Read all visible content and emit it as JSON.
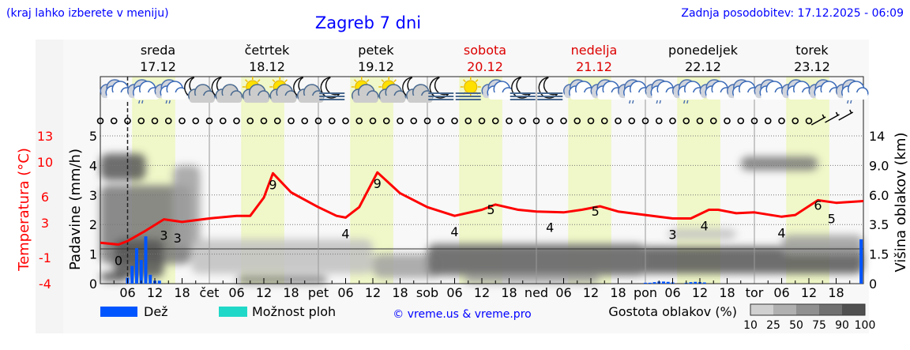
{
  "header": {
    "menu_hint": "(kraj lahko izberete v meniju)",
    "title": "Zagreb 7 dni",
    "updated": "Zadnja posodobitev: 17.12.2025 - 06:09"
  },
  "colors": {
    "title": "#0000ff",
    "temperature": "#ff0000",
    "weekend": "#dd0000",
    "rain": "#0055ff",
    "shower_chance": "#20d8c8",
    "daylight": "#f0f7c8"
  },
  "days": [
    {
      "name": "sreda",
      "date": "17.12",
      "weekend": false,
      "short": ""
    },
    {
      "name": "četrtek",
      "date": "18.12",
      "weekend": false,
      "short": "čet"
    },
    {
      "name": "petek",
      "date": "19.12",
      "weekend": false,
      "short": "pet"
    },
    {
      "name": "sobota",
      "date": "20.12",
      "weekend": true,
      "short": "sob"
    },
    {
      "name": "nedelja",
      "date": "21.12",
      "weekend": true,
      "short": "ned"
    },
    {
      "name": "ponedeljek",
      "date": "22.12",
      "weekend": false,
      "short": "pon"
    },
    {
      "name": "torek",
      "date": "23.12",
      "weekend": false,
      "short": "tor"
    }
  ],
  "hour_ticks": [
    "06",
    "12",
    "18"
  ],
  "weather_icons": [
    "cloudy",
    "cloud-drizzle",
    "cloud-drizzle",
    "moon-cloud",
    "moon-cloud",
    "sun-cloud",
    "sun-cloud",
    "moon-cloud",
    "moon-fog",
    "sun-cloud",
    "sun-cloud",
    "moon-cloud",
    "moon-fog",
    "sun-fog",
    "cloudy",
    "moon-fog",
    "moon-fog",
    "cloudy",
    "cloudy",
    "cloud-drizzle",
    "cloud-drizzle",
    "cloud-drizzle",
    "cloudy",
    "cloudy",
    "cloudy",
    "cloudy",
    "cloudy",
    "cloud-drizzle"
  ],
  "wind": {
    "calm_count": 53,
    "barbs": [
      "light-wind",
      "light-wind",
      "light-wind"
    ]
  },
  "chart_data": {
    "type": "line",
    "current_time_hour": 6,
    "x_unit": "hours from 17.12 00:00",
    "xlim": [
      0,
      168
    ],
    "daylight_hours": [
      7,
      16.5
    ],
    "left_axis": {
      "label": "Padavine (mm/h)",
      "ylim": [
        0,
        5
      ],
      "ticks": [
        "0",
        "1",
        "2",
        "3",
        "4",
        "5"
      ]
    },
    "temp_axis": {
      "label": "Temperatura (°C)",
      "ylim": [
        -4,
        13
      ],
      "ticks": [
        "-4",
        "-1",
        "3",
        "6",
        "10",
        "13"
      ]
    },
    "right_axis": {
      "label": "Višina oblakov (km)",
      "ticks": [
        "0",
        "1.5",
        "3.5",
        "6.0",
        "9.0",
        "14"
      ]
    },
    "temperature": {
      "hours": [
        0,
        4,
        6,
        10,
        14,
        18,
        24,
        30,
        33,
        36,
        38,
        42,
        48,
        52,
        54,
        57,
        61,
        66,
        72,
        78,
        84,
        87,
        92,
        96,
        102,
        106,
        110,
        114,
        120,
        126,
        130,
        134,
        136,
        140,
        144,
        150,
        153,
        158,
        162,
        168
      ],
      "values": [
        0.7,
        0.5,
        0.9,
        2.1,
        3.4,
        3.1,
        3.5,
        3.8,
        3.8,
        5.9,
        8.7,
        6.5,
        4.8,
        3.8,
        3.6,
        4.8,
        8.8,
        6.4,
        4.8,
        3.8,
        4.5,
        5.1,
        4.5,
        4.3,
        4.2,
        4.5,
        4.9,
        4.3,
        3.9,
        3.5,
        3.5,
        4.5,
        4.5,
        4.1,
        4.2,
        3.7,
        3.9,
        5.6,
        5.3,
        5.5
      ]
    },
    "temp_labels": [
      {
        "hour": 4,
        "text": "0"
      },
      {
        "hour": 14,
        "text": "3"
      },
      {
        "hour": 17,
        "text": "3"
      },
      {
        "hour": 38,
        "text": "9"
      },
      {
        "hour": 54,
        "text": "4"
      },
      {
        "hour": 61,
        "text": "9"
      },
      {
        "hour": 78,
        "text": "4"
      },
      {
        "hour": 86,
        "text": "5"
      },
      {
        "hour": 99,
        "text": "4"
      },
      {
        "hour": 109,
        "text": "5"
      },
      {
        "hour": 126,
        "text": "3"
      },
      {
        "hour": 133,
        "text": "4"
      },
      {
        "hour": 150,
        "text": "4"
      },
      {
        "hour": 158,
        "text": "6"
      },
      {
        "hour": 161,
        "text": "5"
      }
    ],
    "precipitation": {
      "hours": [
        6,
        7,
        8,
        9,
        10,
        11,
        12,
        13,
        120,
        121,
        122,
        123,
        124,
        125,
        126,
        129,
        130,
        131,
        132,
        133,
        167.5
      ],
      "values": [
        0.2,
        0.6,
        1.2,
        0.8,
        1.6,
        0.3,
        0.1,
        0.1,
        0.03,
        0.03,
        0.05,
        0.07,
        0.07,
        0.06,
        0.04,
        0.03,
        0.05,
        0.06,
        0.05,
        0.04,
        1.5
      ]
    },
    "cloud_density_legend": {
      "label": "Gostota oblakov (%)",
      "levels": [
        "10",
        "25",
        "50",
        "75",
        "90",
        "100"
      ],
      "colors": [
        "#d0d0d0",
        "#b0b0b0",
        "#909090",
        "#707070",
        "#505050"
      ]
    },
    "cloud_layers": [
      {
        "h0": 0,
        "h1": 10,
        "km0": 7.5,
        "km1": 11,
        "density": 90
      },
      {
        "h0": 0,
        "h1": 20,
        "km0": 1,
        "km1": 7,
        "density": 75
      },
      {
        "h0": 3,
        "h1": 14,
        "km0": 0.3,
        "km1": 2.5,
        "density": 90
      },
      {
        "h0": 16,
        "h1": 22,
        "km0": 2,
        "km1": 9,
        "density": 50
      },
      {
        "h0": 0,
        "h1": 6,
        "km0": 0.1,
        "km1": 0.6,
        "density": 90
      },
      {
        "h0": 20,
        "h1": 60,
        "km0": 0.5,
        "km1": 2.5,
        "density": 25
      },
      {
        "h0": 30,
        "h1": 50,
        "km0": 0,
        "km1": 0.4,
        "density": 75
      },
      {
        "h0": 60,
        "h1": 75,
        "km0": 0.3,
        "km1": 1.5,
        "density": 50
      },
      {
        "h0": 72,
        "h1": 168,
        "km0": 0.5,
        "km1": 2,
        "density": 90
      },
      {
        "h0": 72,
        "h1": 120,
        "km0": 0.4,
        "km1": 2.2,
        "density": 75
      },
      {
        "h0": 80,
        "h1": 110,
        "km0": 0,
        "km1": 0.4,
        "density": 50
      },
      {
        "h0": 125,
        "h1": 140,
        "km0": 2.5,
        "km1": 3.2,
        "density": 25
      },
      {
        "h0": 141,
        "h1": 158,
        "km0": 8.5,
        "km1": 10.5,
        "density": 75
      },
      {
        "h0": 150,
        "h1": 168,
        "km0": 1.5,
        "km1": 2.8,
        "density": 50
      }
    ]
  },
  "legend": {
    "rain": "Dež",
    "shower_chance": "Možnost ploh",
    "credit": "© vreme.us & vreme.pro"
  }
}
